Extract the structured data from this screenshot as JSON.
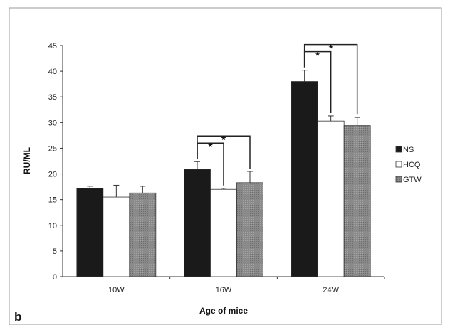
{
  "chart_data": {
    "type": "bar",
    "title": "",
    "xlabel": "Age of mice",
    "ylabel": "RU/ML",
    "ylim": [
      0,
      45
    ],
    "yticks": [
      0,
      5,
      10,
      15,
      20,
      25,
      30,
      35,
      40,
      45
    ],
    "categories": [
      "10W",
      "16W",
      "24W"
    ],
    "series": [
      {
        "name": "NS",
        "values": [
          17.2,
          20.9,
          38.0
        ],
        "errors": [
          0.4,
          1.5,
          2.2
        ],
        "color": "#1a1a1a"
      },
      {
        "name": "HCQ",
        "values": [
          15.5,
          17.0,
          30.3
        ],
        "errors": [
          2.3,
          0.2,
          1.0
        ],
        "color": "#ffffff"
      },
      {
        "name": "GTW",
        "values": [
          16.3,
          18.3,
          29.4
        ],
        "errors": [
          1.3,
          2.2,
          1.6
        ],
        "color": "#8a8a8a"
      }
    ],
    "legend_position": "right",
    "grid": false,
    "significance": [
      {
        "category": "16W",
        "from": "NS",
        "to": "HCQ",
        "label": "*"
      },
      {
        "category": "16W",
        "from": "NS",
        "to": "GTW",
        "label": "*"
      },
      {
        "category": "24W",
        "from": "NS",
        "to": "HCQ",
        "label": "*"
      },
      {
        "category": "24W",
        "from": "NS",
        "to": "GTW",
        "label": "*"
      }
    ]
  },
  "panel_label": "b"
}
